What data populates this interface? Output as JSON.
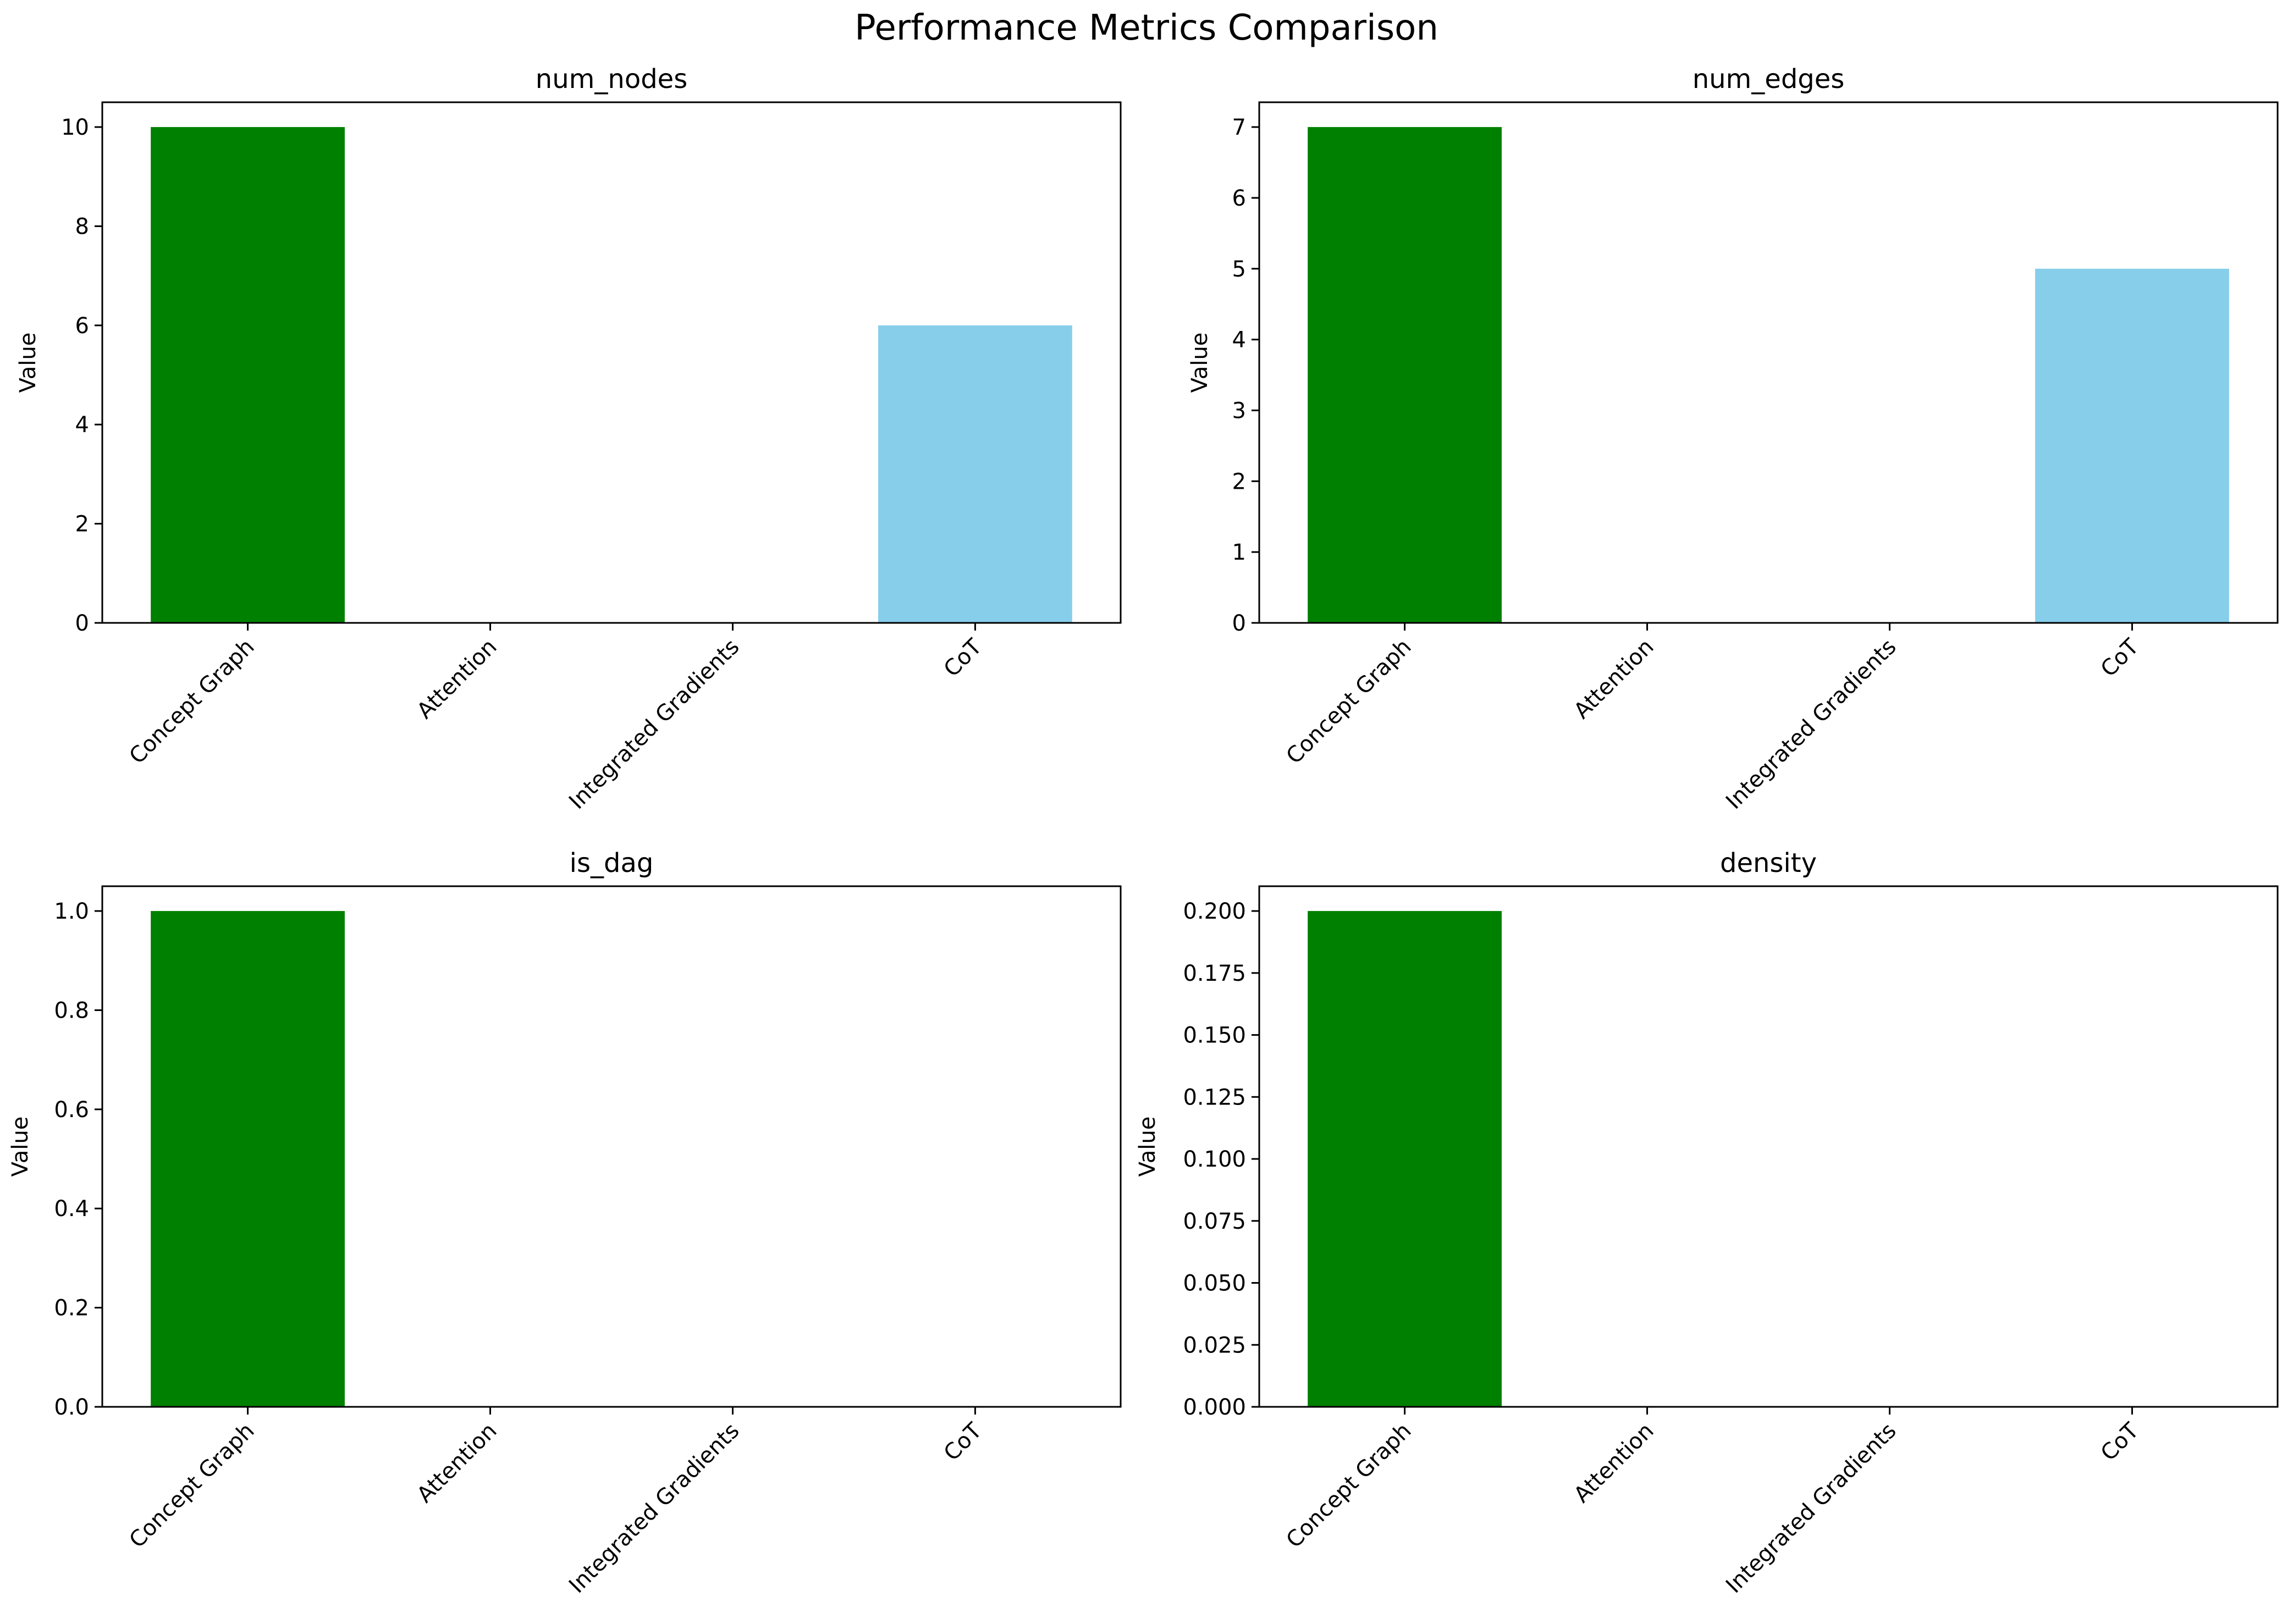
{
  "figure": {
    "title": "Performance Metrics Comparison"
  },
  "colors": {
    "concept_graph": "#008000",
    "cot": "#87ceeb",
    "axis": "#000000"
  },
  "chart_data": [
    {
      "type": "bar",
      "title": "num_nodes",
      "ylabel": "Value",
      "categories": [
        "Concept Graph",
        "Attention",
        "Integrated Gradients",
        "CoT"
      ],
      "values": [
        10,
        0,
        0,
        6
      ],
      "colors": [
        "#008000",
        "#ff0000",
        "#0000ff",
        "#87ceeb"
      ],
      "ylim": [
        0,
        10.5
      ],
      "yticks": [
        "0",
        "2",
        "4",
        "6",
        "8",
        "10"
      ],
      "ytick_values": [
        0,
        2,
        4,
        6,
        8,
        10
      ]
    },
    {
      "type": "bar",
      "title": "num_edges",
      "ylabel": "Value",
      "categories": [
        "Concept Graph",
        "Attention",
        "Integrated Gradients",
        "CoT"
      ],
      "values": [
        7,
        0,
        0,
        5
      ],
      "colors": [
        "#008000",
        "#ff0000",
        "#0000ff",
        "#87ceeb"
      ],
      "ylim": [
        0,
        7.35
      ],
      "yticks": [
        "0",
        "1",
        "2",
        "3",
        "4",
        "5",
        "6",
        "7"
      ],
      "ytick_values": [
        0,
        1,
        2,
        3,
        4,
        5,
        6,
        7
      ]
    },
    {
      "type": "bar",
      "title": "is_dag",
      "ylabel": "Value",
      "categories": [
        "Concept Graph",
        "Attention",
        "Integrated Gradients",
        "CoT"
      ],
      "values": [
        1,
        0,
        0,
        0
      ],
      "colors": [
        "#008000",
        "#ff0000",
        "#0000ff",
        "#87ceeb"
      ],
      "ylim": [
        0,
        1.05
      ],
      "yticks": [
        "0.0",
        "0.2",
        "0.4",
        "0.6",
        "0.8",
        "1.0"
      ],
      "ytick_values": [
        0,
        0.2,
        0.4,
        0.6,
        0.8,
        1.0
      ]
    },
    {
      "type": "bar",
      "title": "density",
      "ylabel": "Value",
      "categories": [
        "Concept Graph",
        "Attention",
        "Integrated Gradients",
        "CoT"
      ],
      "values": [
        0.2,
        0,
        0,
        0
      ],
      "colors": [
        "#008000",
        "#ff0000",
        "#0000ff",
        "#87ceeb"
      ],
      "ylim": [
        0,
        0.21
      ],
      "yticks": [
        "0.000",
        "0.025",
        "0.050",
        "0.075",
        "0.100",
        "0.125",
        "0.150",
        "0.175",
        "0.200"
      ],
      "ytick_values": [
        0,
        0.025,
        0.05,
        0.075,
        0.1,
        0.125,
        0.15,
        0.175,
        0.2
      ]
    }
  ]
}
